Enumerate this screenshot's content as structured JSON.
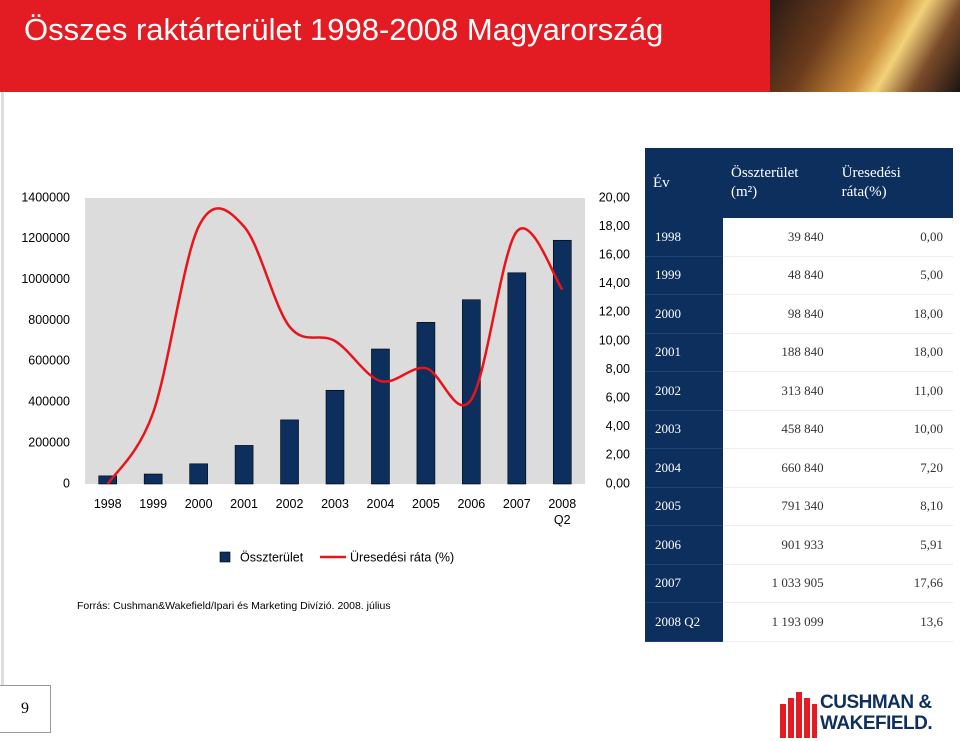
{
  "header": {
    "title": "Összes raktárterület 1998-2008 Magyarország"
  },
  "chart_data": {
    "type": "bar",
    "categories": [
      "1998",
      "1999",
      "2000",
      "2001",
      "2002",
      "2003",
      "2004",
      "2005",
      "2006",
      "2007",
      "2008 Q2"
    ],
    "series": [
      {
        "name": "Összterület",
        "type": "bar",
        "color": "#0d2f5e",
        "values": [
          39840,
          48840,
          98840,
          188840,
          313840,
          458840,
          660840,
          791340,
          901933,
          1033905,
          1193099
        ]
      },
      {
        "name": "Üresedési ráta (%)",
        "type": "line",
        "axis": "y2",
        "color": "#e8141a",
        "values": [
          0,
          5,
          18,
          18,
          11,
          10,
          7.2,
          8.1,
          5.91,
          17.66,
          13.6
        ]
      }
    ],
    "ylim": [
      0,
      1400000
    ],
    "yticks": [
      0,
      200000,
      400000,
      600000,
      800000,
      1000000,
      1200000,
      1400000
    ],
    "y2lim": [
      0,
      20
    ],
    "y2ticks": [
      {
        "value": 0,
        "label": "0,00"
      },
      {
        "value": 2,
        "label": "2,00"
      },
      {
        "value": 4,
        "label": "4,00"
      },
      {
        "value": 6,
        "label": "6,00"
      },
      {
        "value": 8,
        "label": "8,00"
      },
      {
        "value": 10,
        "label": "10,00"
      },
      {
        "value": 12,
        "label": "12,00"
      },
      {
        "value": 14,
        "label": "14,00"
      },
      {
        "value": 16,
        "label": "16,00"
      },
      {
        "value": 18,
        "label": "18,00"
      },
      {
        "value": 20,
        "label": "20,00"
      }
    ],
    "smooth": true,
    "legend": "bottom"
  },
  "source": "Forrás: Cushman&Wakefield/Ipari és Marketing Divízió. 2008. július",
  "table": {
    "header": [
      "Év",
      "Összterület (m²)",
      "Üresedési ráta(%)"
    ],
    "rows": [
      [
        "1998",
        "39 840",
        "0,00"
      ],
      [
        "1999",
        "48 840",
        "5,00"
      ],
      [
        "2000",
        "98 840",
        "18,00"
      ],
      [
        "2001",
        "188 840",
        "18,00"
      ],
      [
        "2002",
        "313 840",
        "11,00"
      ],
      [
        "2003",
        "458 840",
        "10,00"
      ],
      [
        "2004",
        "660 840",
        "7,20"
      ],
      [
        "2005",
        "791 340",
        "8,10"
      ],
      [
        "2006",
        "901 933",
        "5,91"
      ],
      [
        "2007",
        "1 033 905",
        "17,66"
      ],
      [
        "2008 Q2",
        "1 193 099",
        "13,6"
      ]
    ]
  },
  "footer": {
    "page": "9",
    "logo": [
      "CUSHMAN &",
      "WAKEFIELD."
    ]
  }
}
